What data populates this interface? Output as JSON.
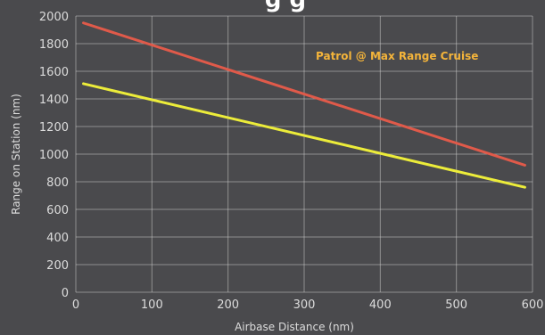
{
  "chart_data": {
    "type": "line",
    "title_fragment": "g  g",
    "xlabel": "Airbase Distance (nm)",
    "ylabel": "Range on Station (nm)",
    "xlim": [
      0,
      600
    ],
    "ylim": [
      0,
      2000
    ],
    "xticks": [
      0,
      100,
      200,
      300,
      400,
      500,
      600
    ],
    "yticks": [
      0,
      200,
      400,
      600,
      800,
      1000,
      1200,
      1400,
      1600,
      1800,
      2000
    ],
    "grid": true,
    "annotation": "Patrol @ Max Range Cruise",
    "series": [
      {
        "color": "#e05a4a",
        "x": [
          10,
          590
        ],
        "y": [
          1950,
          920
        ]
      },
      {
        "color": "#ecec3a",
        "x": [
          10,
          590
        ],
        "y": [
          1510,
          760
        ]
      }
    ]
  }
}
